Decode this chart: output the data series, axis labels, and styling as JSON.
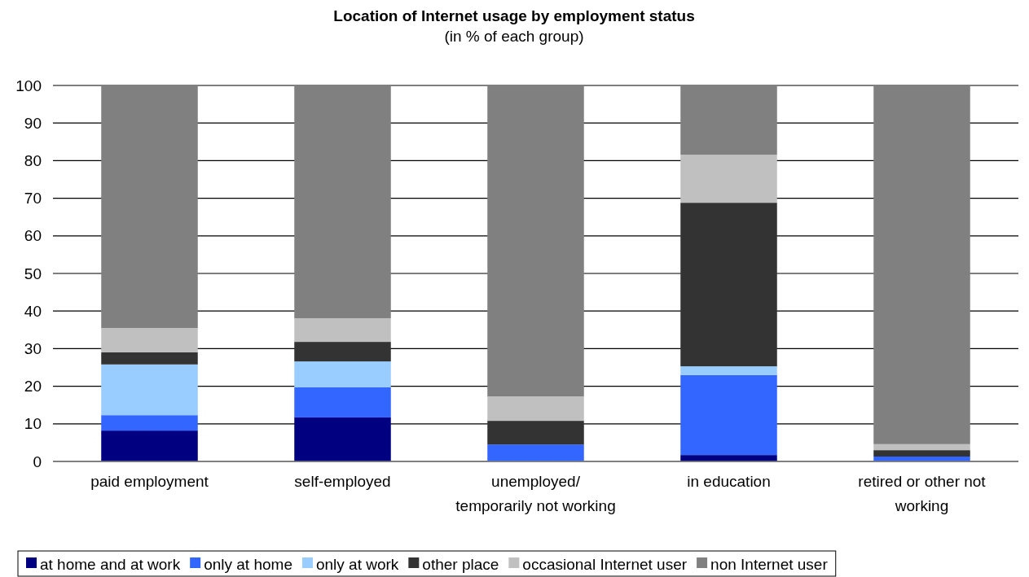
{
  "chart_data": {
    "type": "bar",
    "title": "Location of Internet usage by employment status",
    "subtitle": "(in % of each group)",
    "categories": [
      "paid employment",
      "self-employed",
      "unemployed/ temporarily not working",
      "in education",
      "retired or other not working"
    ],
    "stacked": true,
    "ylim": [
      0,
      100
    ],
    "yticks": [
      0,
      10,
      20,
      30,
      40,
      50,
      60,
      70,
      80,
      90,
      100
    ],
    "grid": "y",
    "legend": "bottom",
    "series": [
      {
        "name": "at home and at work",
        "color": "#000080",
        "values": [
          8.2,
          11.7,
          null,
          1.7,
          null
        ]
      },
      {
        "name": "only at home",
        "color": "#3366ff",
        "values": [
          4.1,
          8.0,
          4.5,
          21.3,
          1.3
        ]
      },
      {
        "name": "only at work",
        "color": "#99ccff",
        "values": [
          13.5,
          6.9,
          0,
          2.3,
          0
        ]
      },
      {
        "name": "other place",
        "color": "#333333",
        "values": [
          3.2,
          5.2,
          6.3,
          43.5,
          1.7
        ]
      },
      {
        "name": "occasional Internet user",
        "color": "#c0c0c0",
        "values": [
          6.5,
          6.3,
          6.5,
          12.8,
          1.6
        ]
      },
      {
        "name": "non Internet user",
        "color": "#808080",
        "values": [
          64.5,
          61.9,
          82.5,
          18.4,
          95.2
        ]
      }
    ]
  }
}
